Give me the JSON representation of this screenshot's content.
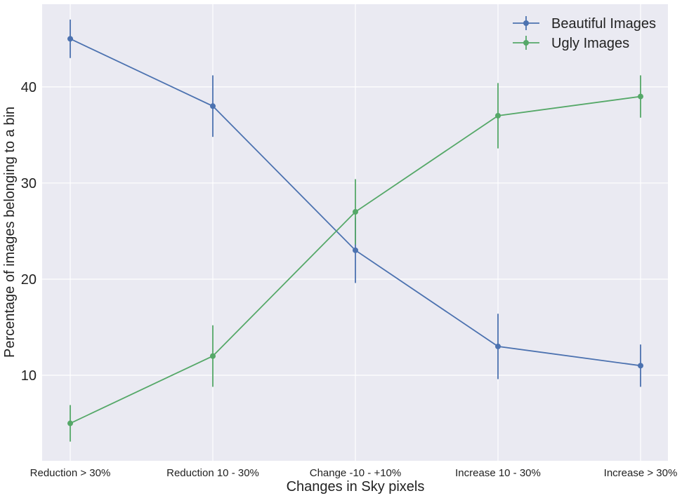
{
  "chart_data": {
    "type": "line",
    "title": "",
    "xlabel": "Changes in Sky pixels",
    "ylabel": "Percentage of images belonging to a bin",
    "categories": [
      "Reduction > 30%",
      "Reduction 10 - 30%",
      "Change -10 - +10%",
      "Increase 10 - 30%",
      "Increase > 30%"
    ],
    "ylim": [
      1.1,
      48.6
    ],
    "yticks": [
      10,
      20,
      30,
      40
    ],
    "grid": true,
    "legend_position": "top-right",
    "series": [
      {
        "name": "Beautiful Images",
        "color": "#4c72b0",
        "values": [
          45,
          38,
          23,
          13,
          11
        ],
        "errors": [
          2.0,
          3.2,
          3.4,
          3.4,
          2.2
        ]
      },
      {
        "name": "Ugly Images",
        "color": "#55a868",
        "values": [
          5,
          12,
          27,
          37,
          39
        ],
        "errors": [
          1.9,
          3.2,
          3.4,
          3.4,
          2.2
        ]
      }
    ]
  }
}
